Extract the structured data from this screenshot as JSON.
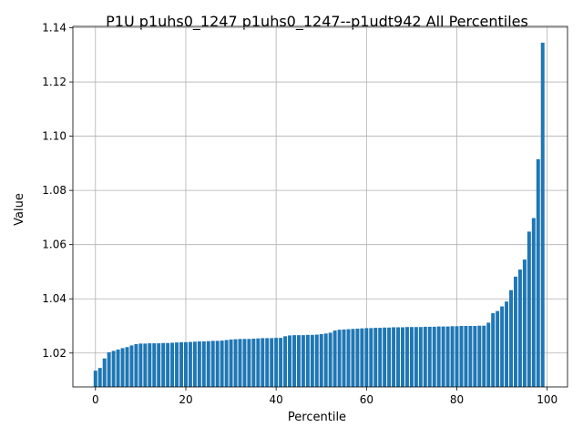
{
  "chart_data": {
    "type": "bar",
    "title": "P1U p1uhs0_1247 p1uhs0_1247--p1udt942 All Percentiles",
    "xlabel": "Percentile",
    "ylabel": "Value",
    "xlim": [
      -5,
      104.5
    ],
    "ylim": [
      1.0075,
      1.1405
    ],
    "xticks": [
      0,
      20,
      40,
      60,
      80,
      100
    ],
    "yticks": [
      1.02,
      1.04,
      1.06,
      1.08,
      1.1,
      1.12,
      1.14
    ],
    "ytick_labels": [
      "1.02",
      "1.04",
      "1.06",
      "1.08",
      "1.10",
      "1.12",
      "1.14"
    ],
    "grid": true,
    "bar_color": "#1f77b4",
    "x": [
      0,
      1,
      2,
      3,
      4,
      5,
      6,
      7,
      8,
      9,
      10,
      11,
      12,
      13,
      14,
      15,
      16,
      17,
      18,
      19,
      20,
      21,
      22,
      23,
      24,
      25,
      26,
      27,
      28,
      29,
      30,
      31,
      32,
      33,
      34,
      35,
      36,
      37,
      38,
      39,
      40,
      41,
      42,
      43,
      44,
      45,
      46,
      47,
      48,
      49,
      50,
      51,
      52,
      53,
      54,
      55,
      56,
      57,
      58,
      59,
      60,
      61,
      62,
      63,
      64,
      65,
      66,
      67,
      68,
      69,
      70,
      71,
      72,
      73,
      74,
      75,
      76,
      77,
      78,
      79,
      80,
      81,
      82,
      83,
      84,
      85,
      86,
      87,
      88,
      89,
      90,
      91,
      92,
      93,
      94,
      95,
      96,
      97,
      98,
      99
    ],
    "values": [
      1.0135,
      1.0145,
      1.018,
      1.0203,
      1.0208,
      1.0213,
      1.0218,
      1.0222,
      1.0228,
      1.0233,
      1.0235,
      1.0235,
      1.0236,
      1.0236,
      1.0236,
      1.0237,
      1.0237,
      1.0238,
      1.0239,
      1.024,
      1.024,
      1.0241,
      1.0242,
      1.0243,
      1.0243,
      1.0244,
      1.0245,
      1.0245,
      1.0246,
      1.0248,
      1.025,
      1.0251,
      1.0252,
      1.0252,
      1.0252,
      1.0253,
      1.0254,
      1.0255,
      1.0255,
      1.0255,
      1.0256,
      1.0256,
      1.0262,
      1.0265,
      1.0266,
      1.0266,
      1.0266,
      1.0267,
      1.0267,
      1.0268,
      1.027,
      1.0272,
      1.0275,
      1.0283,
      1.0286,
      1.0287,
      1.0288,
      1.0289,
      1.029,
      1.0291,
      1.0292,
      1.0292,
      1.0293,
      1.0293,
      1.0294,
      1.0294,
      1.0295,
      1.0295,
      1.0295,
      1.0296,
      1.0296,
      1.0296,
      1.0296,
      1.0297,
      1.0297,
      1.0297,
      1.0298,
      1.0298,
      1.0298,
      1.0299,
      1.0299,
      1.03,
      1.03,
      1.03,
      1.03,
      1.0301,
      1.0301,
      1.0312,
      1.0347,
      1.0355,
      1.0372,
      1.039,
      1.0432,
      1.0482,
      1.0508,
      1.0545,
      1.0648,
      1.0698,
      1.0915,
      1.1345
    ]
  }
}
